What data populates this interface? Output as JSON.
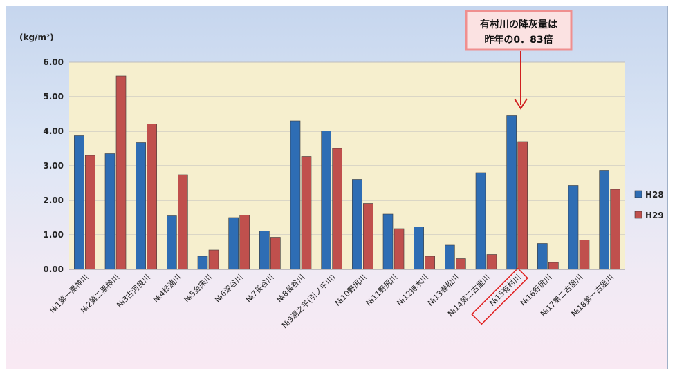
{
  "chart_data": {
    "type": "bar",
    "ylabel": "(kg/m²)",
    "ylim": [
      0,
      6
    ],
    "yticks": [
      "0.00",
      "1.00",
      "2.00",
      "3.00",
      "4.00",
      "5.00",
      "6.00"
    ],
    "categories": [
      "№1第一黒神川",
      "№2第二黒神川",
      "№3古河良川",
      "№4松浦川",
      "№5金床川",
      "№6深谷川",
      "№7長谷川",
      "№8長谷川",
      "№9湯之平(引ノ平川)",
      "№10野尻川",
      "№11野尻川",
      "№12持木川",
      "№13春松川",
      "№14第二古里川",
      "№15有村川",
      "№16野尻川",
      "№17第二古里川",
      "№18第一古里川"
    ],
    "series": [
      {
        "name": "H28",
        "color": "#2e6db4",
        "values": [
          3.87,
          3.35,
          3.67,
          1.55,
          0.38,
          1.5,
          1.11,
          4.3,
          4.01,
          2.61,
          1.6,
          1.23,
          0.7,
          2.8,
          4.45,
          0.75,
          2.43,
          2.87
        ]
      },
      {
        "name": "H29",
        "color": "#c0504d",
        "values": [
          3.3,
          5.6,
          4.21,
          2.74,
          0.56,
          1.57,
          0.93,
          3.27,
          3.5,
          1.91,
          1.18,
          0.38,
          0.31,
          0.43,
          3.7,
          0.2,
          0.85,
          2.32
        ]
      }
    ],
    "legend": "right",
    "grid": true,
    "highlight_category": "№15有村川",
    "annotation": {
      "line1": "有村川の降灰量は",
      "line2": "昨年の0．83倍"
    }
  }
}
